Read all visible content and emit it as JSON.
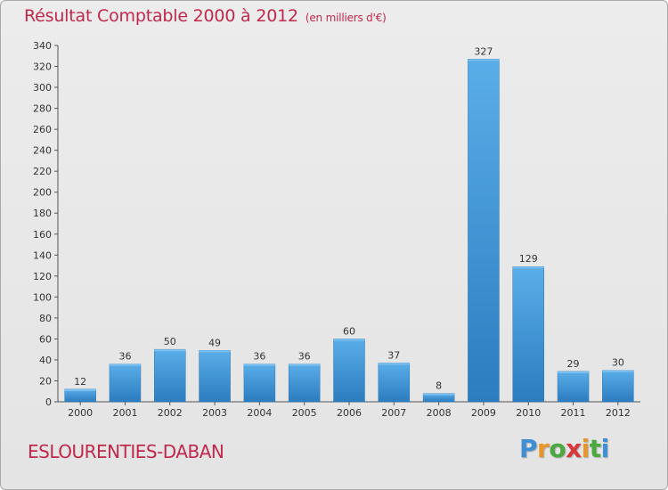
{
  "header": {
    "title": "Résultat Comptable 2000 à 2012",
    "subtitle": "(en milliers d'€)"
  },
  "footer": {
    "commune": "ESLOURENTIES-DABAN",
    "logo_letters": [
      "P",
      "r",
      "o",
      "x",
      "i",
      "t",
      "i"
    ],
    "logo_colors": [
      "#3f8fd6",
      "#e8962a",
      "#4aa83f",
      "#d8363a",
      "#e8962a",
      "#4aa83f",
      "#3f8fd6"
    ]
  },
  "chart_data": {
    "type": "bar",
    "title": "Résultat Comptable 2000 à 2012",
    "subtitle": "(en milliers d'€)",
    "categories": [
      "2000",
      "2001",
      "2002",
      "2003",
      "2004",
      "2005",
      "2006",
      "2007",
      "2008",
      "2009",
      "2010",
      "2011",
      "2012"
    ],
    "values": [
      12,
      36,
      50,
      49,
      36,
      36,
      60,
      37,
      8,
      327,
      129,
      29,
      30
    ],
    "ylim": [
      0,
      340
    ],
    "yticks": [
      0,
      20,
      40,
      60,
      80,
      100,
      120,
      140,
      160,
      180,
      200,
      220,
      240,
      260,
      280,
      300,
      320,
      340
    ],
    "xlabel": "",
    "ylabel": "",
    "grid": false,
    "bar_color": "#3d8fd4"
  }
}
